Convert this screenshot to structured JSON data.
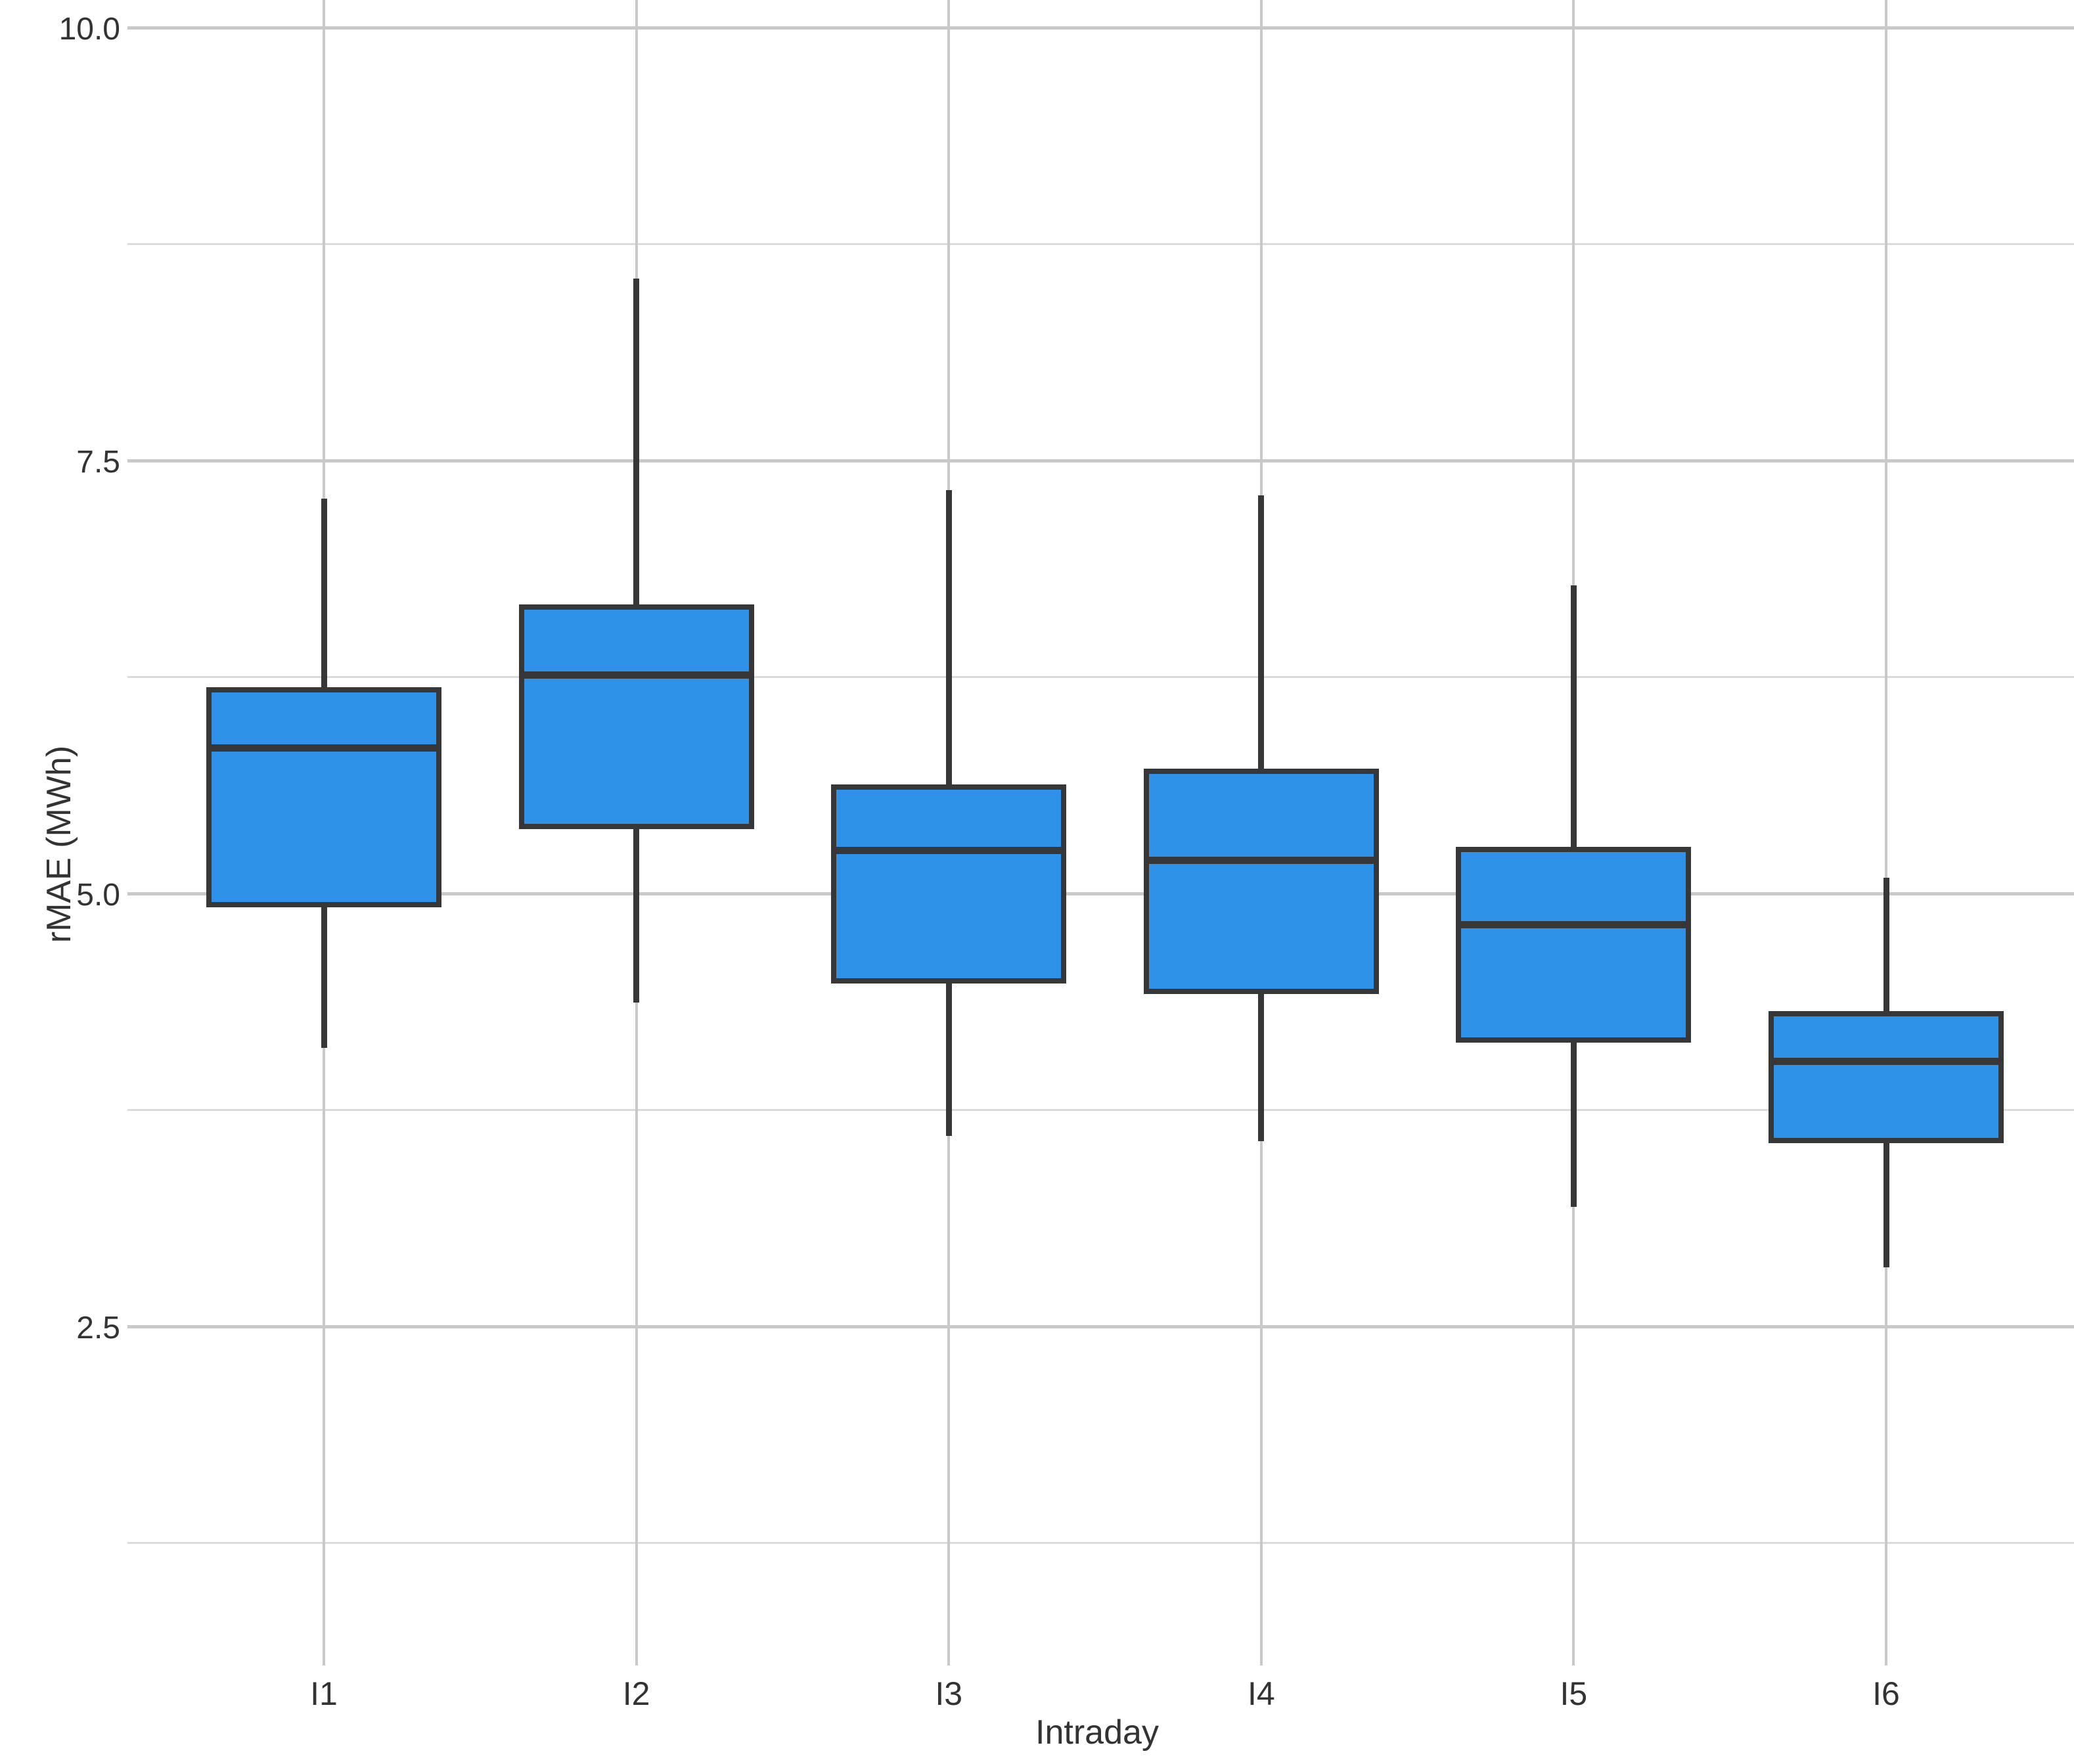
{
  "chart_data": {
    "type": "boxplot",
    "title": "",
    "xlabel": "Intraday",
    "ylabel": "rMAE (MWh)",
    "categories": [
      "I1",
      "I2",
      "I3",
      "I4",
      "I5",
      "I6"
    ],
    "series": [
      {
        "name": "rMAE by intraday session",
        "boxes": [
          {
            "category": "I1",
            "whisker_low": 4.11,
            "q1": 4.92,
            "median": 5.84,
            "q3": 6.19,
            "whisker_high": 7.28
          },
          {
            "category": "I2",
            "whisker_low": 4.37,
            "q1": 5.37,
            "median": 6.26,
            "q3": 6.67,
            "whisker_high": 8.55
          },
          {
            "category": "I3",
            "whisker_low": 3.6,
            "q1": 4.48,
            "median": 5.25,
            "q3": 5.63,
            "whisker_high": 7.33
          },
          {
            "category": "I4",
            "whisker_low": 3.57,
            "q1": 4.42,
            "median": 5.19,
            "q3": 5.72,
            "whisker_high": 7.3
          },
          {
            "category": "I5",
            "whisker_low": 3.19,
            "q1": 4.14,
            "median": 4.82,
            "q3": 5.27,
            "whisker_high": 6.78
          },
          {
            "category": "I6",
            "whisker_low": 2.84,
            "q1": 3.56,
            "median": 4.03,
            "q3": 4.32,
            "whisker_high": 5.09
          }
        ]
      }
    ],
    "y_axis": {
      "label": "rMAE (MWh)",
      "major_ticks": [
        10.0,
        7.5,
        5.0,
        2.5
      ],
      "major_tick_labels": [
        "10.0",
        "7.5",
        "5.0",
        "2.5"
      ],
      "minor_gridlines": [
        8.75,
        6.25,
        3.75,
        1.25
      ],
      "range": [
        0.55,
        10.16
      ]
    },
    "x_axis": {
      "label": "Intraday",
      "tick_labels": [
        "I1",
        "I2",
        "I3",
        "I4",
        "I5",
        "I6"
      ]
    },
    "grid": "on",
    "legend": "none",
    "colors": {
      "box_fill": "#2E92E8",
      "box_stroke": "#373737",
      "grid_major": "#C9C9C9",
      "grid_minor": "#DBDBDB",
      "text": "#333333",
      "background": "#FFFFFF"
    }
  }
}
